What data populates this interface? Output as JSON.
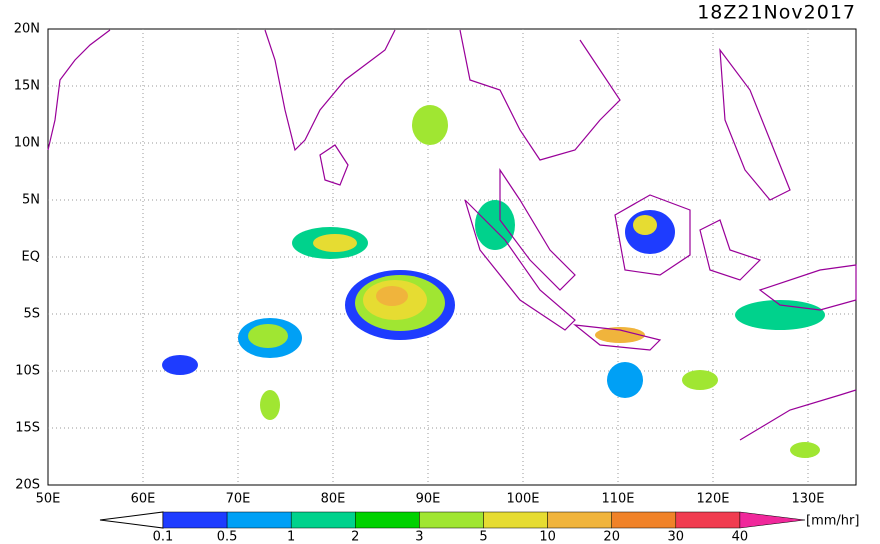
{
  "header": {
    "title": "18Z21Nov2017"
  },
  "map": {
    "lat_labels": [
      "20N",
      "15N",
      "10N",
      "5N",
      "EQ",
      "5S",
      "10S",
      "15S",
      "20S"
    ],
    "lon_labels": [
      "50E",
      "60E",
      "70E",
      "80E",
      "90E",
      "100E",
      "110E",
      "120E",
      "130E"
    ]
  },
  "colorbar": {
    "labels": [
      "0.1",
      "0.5",
      "1",
      "2",
      "3",
      "5",
      "10",
      "20",
      "30",
      "40"
    ],
    "colors": [
      "#ffffff",
      "#1e3cff",
      "#00a0f5",
      "#00d28c",
      "#00d200",
      "#a0e632",
      "#e6dc32",
      "#f0b43c",
      "#f08228",
      "#f03c50",
      "#f0289b"
    ],
    "units": "[mm/hr]"
  }
}
